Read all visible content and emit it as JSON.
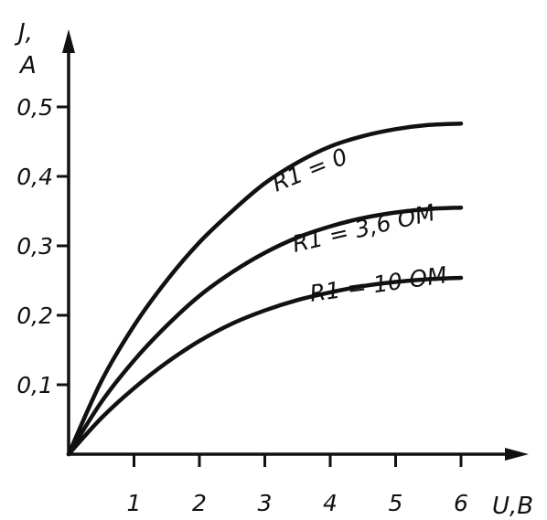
{
  "chart_data": {
    "type": "line",
    "ylabel_line1": "J,",
    "ylabel_line2": "A",
    "xlabel": "U,B",
    "x_ticks": [
      {
        "value": 1,
        "label": "1"
      },
      {
        "value": 2,
        "label": "2"
      },
      {
        "value": 3,
        "label": "3"
      },
      {
        "value": 4,
        "label": "4"
      },
      {
        "value": 5,
        "label": "5"
      },
      {
        "value": 6,
        "label": "6"
      }
    ],
    "y_ticks": [
      {
        "value": 0.1,
        "label": "0,1"
      },
      {
        "value": 0.2,
        "label": "0,2"
      },
      {
        "value": 0.3,
        "label": "0,3"
      },
      {
        "value": 0.4,
        "label": "0,4"
      },
      {
        "value": 0.5,
        "label": "0,5"
      }
    ],
    "xlim": [
      0,
      7
    ],
    "ylim": [
      0,
      0.62
    ],
    "grid": false,
    "series": [
      {
        "name": "R1 = 0",
        "x": [
          0,
          0.5,
          1,
          1.5,
          2,
          2.5,
          3,
          3.5,
          4,
          4.5,
          5,
          5.5,
          6
        ],
        "y": [
          0,
          0.105,
          0.185,
          0.25,
          0.305,
          0.35,
          0.39,
          0.42,
          0.443,
          0.458,
          0.468,
          0.474,
          0.476
        ]
      },
      {
        "name": "R1 = 3,6 OM",
        "x": [
          0,
          0.5,
          1,
          1.5,
          2,
          2.5,
          3,
          3.5,
          4,
          4.5,
          5,
          5.5,
          6
        ],
        "y": [
          0,
          0.075,
          0.135,
          0.185,
          0.228,
          0.262,
          0.29,
          0.312,
          0.328,
          0.34,
          0.348,
          0.353,
          0.355
        ]
      },
      {
        "name": "R1 = 10 OM",
        "x": [
          0,
          0.5,
          1,
          1.5,
          2,
          2.5,
          3,
          3.5,
          4,
          4.5,
          5,
          5.5,
          6
        ],
        "y": [
          0,
          0.052,
          0.095,
          0.132,
          0.163,
          0.188,
          0.207,
          0.222,
          0.233,
          0.242,
          0.248,
          0.252,
          0.254
        ]
      }
    ]
  }
}
